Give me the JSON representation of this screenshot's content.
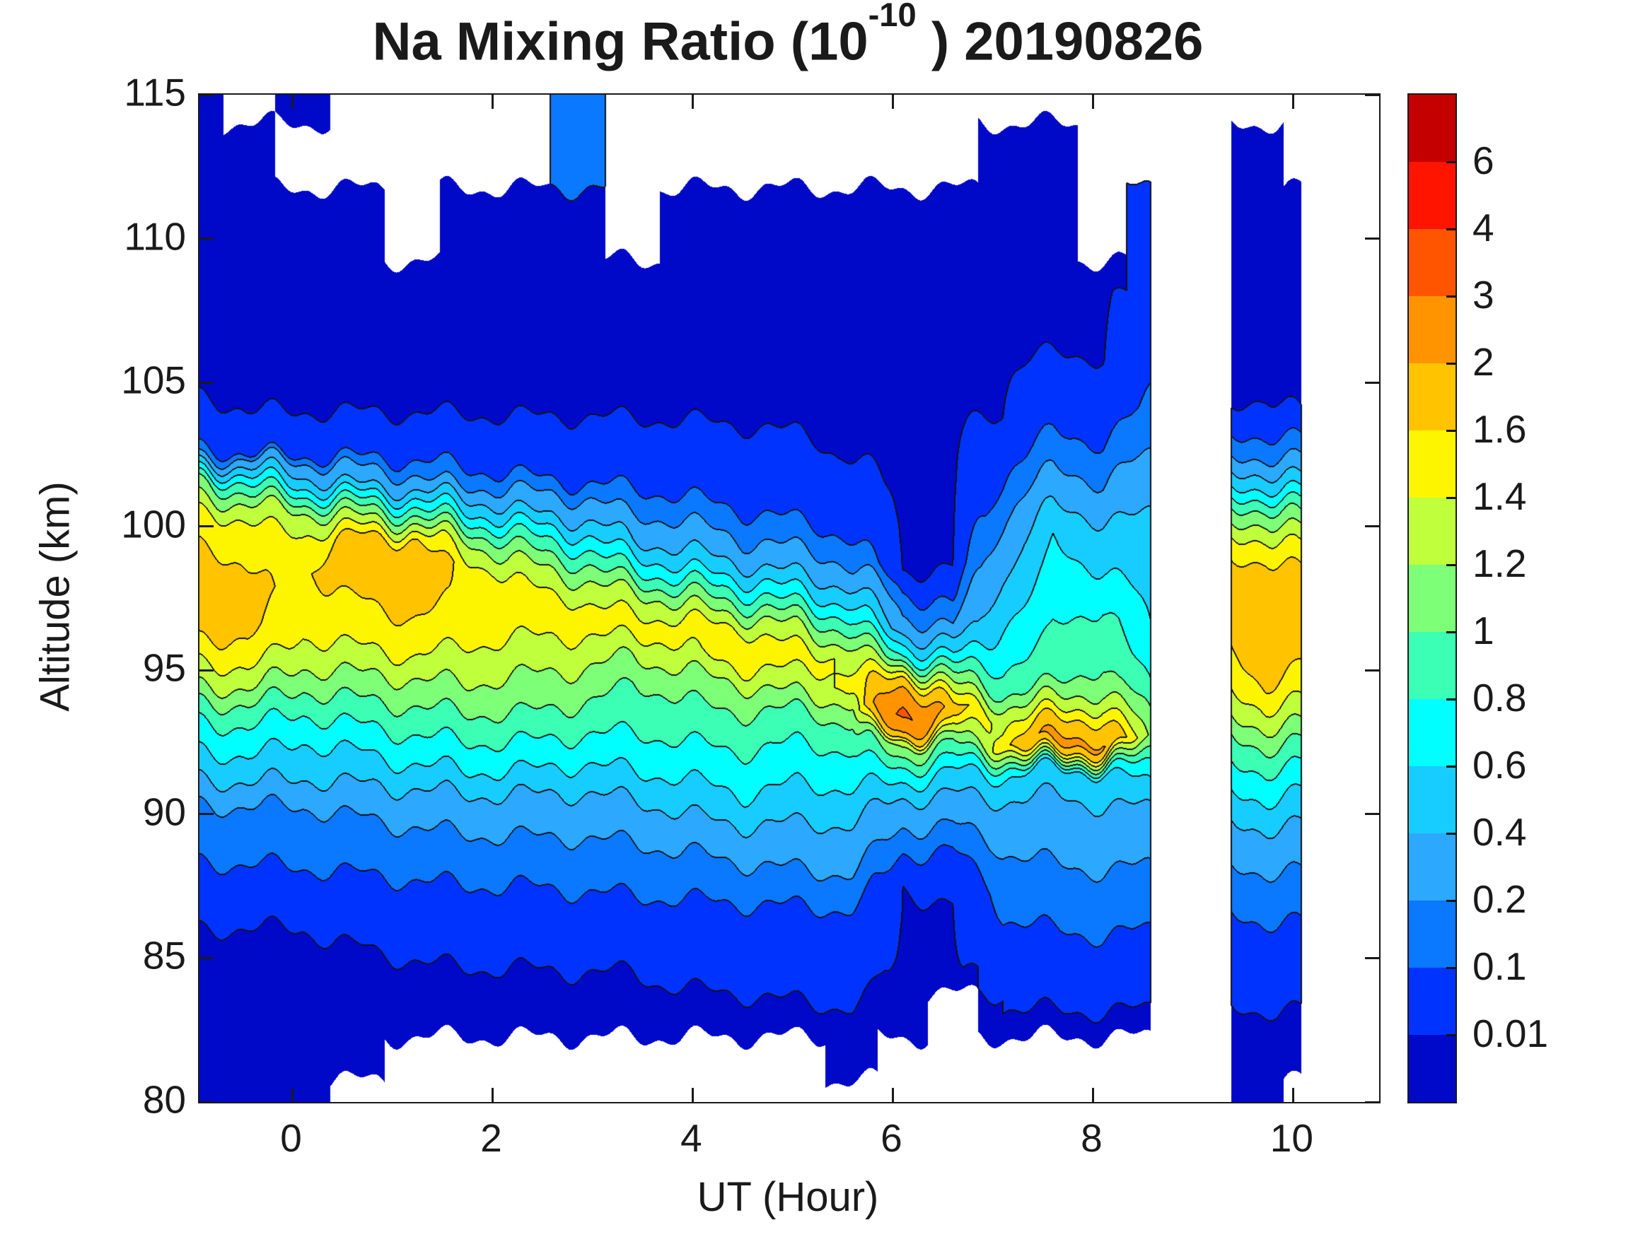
{
  "title": {
    "prefix": "Na Mixing Ratio (10",
    "exp": "-10",
    "suffix": " ) 20190826"
  },
  "axes": {
    "xlabel": "UT (Hour)",
    "ylabel": "Altitude (km)",
    "x_ticks": [
      0,
      2,
      4,
      6,
      8,
      10
    ],
    "y_ticks": [
      80,
      85,
      90,
      95,
      100,
      105,
      110,
      115
    ],
    "xlim": [
      -0.93,
      10.86
    ],
    "ylim": [
      80,
      115
    ]
  },
  "colorbar": {
    "tick_labels": [
      "6",
      "4",
      "3",
      "2",
      "1.6",
      "1.4",
      "1.2",
      "1",
      "0.8",
      "0.6",
      "0.4",
      "0.2",
      "0.1",
      "0.01"
    ],
    "levels": [
      0.01,
      0.1,
      0.2,
      0.4,
      0.6,
      0.8,
      1,
      1.2,
      1.4,
      1.6,
      2,
      3,
      4,
      6
    ],
    "band_colors": [
      "#0009C8",
      "#0033FE",
      "#0A78FF",
      "#2CA8FF",
      "#17CDFF",
      "#00FFFF",
      "#3AFFB5",
      "#7DFF77",
      "#BFFF3C",
      "#FDF500",
      "#FFC300",
      "#FF9400",
      "#FF5500",
      "#FF1400",
      "#C40000"
    ],
    "line_color": "#121212",
    "nodata_color": "#FFFFFF"
  },
  "chart_data": {
    "type": "heatmap",
    "subtype": "filled-contour",
    "x_unit": "UT hour",
    "y_unit": "altitude km",
    "alts": [
      80,
      81.5,
      83,
      84.5,
      86,
      87.5,
      89,
      90.25,
      91.5,
      92.5,
      93.5,
      94.5,
      95.5,
      96.5,
      97.5,
      98.5,
      99.5,
      100.5,
      101.5,
      102.5,
      104,
      106,
      108,
      110.5,
      113,
      115
    ],
    "strips": [
      {
        "name": "main-pass",
        "columns": [
          {
            "x": -0.93,
            "v": [
              0.004,
              0.0045,
              0.005,
              0.006,
              0.009,
              0.06,
              0.13,
              0.18,
              0.45,
              0.65,
              0.85,
              1.2,
              1.45,
              1.7,
              1.85,
              1.75,
              1.58,
              1.42,
              1.05,
              0.12,
              0.012,
              0.005,
              0.004,
              0.004,
              0.003,
              0.003
            ]
          },
          {
            "x": -0.45,
            "v": [
              0.004,
              0.0045,
              0.005,
              0.006,
              0.009,
              0.06,
              0.14,
              0.2,
              0.5,
              0.7,
              0.9,
              1.25,
              1.5,
              1.65,
              1.7,
              1.6,
              1.5,
              1.35,
              0.8,
              0.1,
              0.01,
              0.005,
              0.004,
              0.004,
              0.003,
              null
            ]
          },
          {
            "x": 0.1,
            "v": [
              0.004,
              0.0045,
              0.005,
              0.007,
              0.01,
              0.07,
              0.14,
              0.2,
              0.45,
              0.6,
              0.8,
              1.05,
              1.3,
              1.45,
              1.5,
              1.55,
              1.45,
              1.2,
              0.5,
              0.08,
              0.01,
              0.005,
              0.004,
              0.004,
              null,
              0.003
            ]
          },
          {
            "x": 0.65,
            "v": [
              null,
              0.005,
              0.005,
              0.007,
              0.012,
              0.08,
              0.15,
              0.22,
              0.5,
              0.65,
              0.9,
              1.1,
              1.35,
              1.5,
              1.6,
              1.85,
              1.7,
              1.1,
              0.35,
              0.07,
              0.009,
              0.004,
              0.004,
              0.003,
              null,
              null
            ]
          },
          {
            "x": 1.2,
            "v": [
              null,
              null,
              0.006,
              0.008,
              0.015,
              0.09,
              0.16,
              0.25,
              0.55,
              0.75,
              0.95,
              1.15,
              1.4,
              1.55,
              1.7,
              1.9,
              1.65,
              0.9,
              0.25,
              0.06,
              0.008,
              0.004,
              0.003,
              null,
              null,
              null
            ]
          },
          {
            "x": 1.75,
            "v": [
              null,
              null,
              0.006,
              0.009,
              0.02,
              0.1,
              0.17,
              0.3,
              0.6,
              0.8,
              1.0,
              1.2,
              1.35,
              1.5,
              1.55,
              1.5,
              1.2,
              0.6,
              0.15,
              0.05,
              0.007,
              0.004,
              0.003,
              0.003,
              null,
              null
            ]
          },
          {
            "x": 2.3,
            "v": [
              null,
              null,
              0.006,
              0.009,
              0.02,
              0.1,
              0.18,
              0.3,
              0.6,
              0.8,
              1.0,
              1.15,
              1.3,
              1.45,
              1.5,
              1.3,
              0.9,
              0.4,
              0.12,
              0.04,
              0.006,
              0.004,
              0.003,
              0.003,
              null,
              null
            ]
          },
          {
            "x": 2.85,
            "v": [
              null,
              null,
              0.007,
              0.01,
              0.025,
              0.11,
              0.18,
              0.3,
              0.55,
              0.75,
              0.95,
              1.1,
              1.3,
              1.45,
              1.4,
              1.1,
              0.7,
              0.3,
              0.1,
              0.04,
              0.006,
              0.004,
              0.003,
              0.004,
              0.12,
              0.15
            ]
          },
          {
            "x": 3.4,
            "v": [
              null,
              null,
              0.007,
              0.01,
              0.03,
              0.12,
              0.2,
              0.35,
              0.6,
              0.75,
              0.9,
              1.0,
              1.2,
              1.5,
              1.3,
              0.8,
              0.4,
              0.18,
              0.08,
              0.03,
              0.006,
              0.004,
              0.003,
              null,
              null,
              null
            ]
          },
          {
            "x": 3.95,
            "v": [
              null,
              null,
              0.007,
              0.012,
              0.035,
              0.13,
              0.22,
              0.45,
              0.65,
              0.8,
              0.95,
              1.05,
              1.35,
              1.5,
              1.1,
              0.6,
              0.3,
              0.14,
              0.06,
              0.025,
              0.006,
              0.004,
              0.003,
              0.003,
              null,
              null
            ]
          },
          {
            "x": 4.5,
            "v": [
              null,
              null,
              0.008,
              0.012,
              0.04,
              0.14,
              0.25,
              0.55,
              0.7,
              0.85,
              1.0,
              1.2,
              1.55,
              1.4,
              0.9,
              0.45,
              0.2,
              0.1,
              0.05,
              0.02,
              0.005,
              0.004,
              0.003,
              0.003,
              null,
              null
            ]
          },
          {
            "x": 5.05,
            "v": [
              null,
              null,
              0.008,
              0.014,
              0.045,
              0.15,
              0.28,
              0.5,
              0.65,
              0.8,
              0.95,
              1.3,
              1.5,
              1.2,
              0.7,
              0.35,
              0.15,
              0.08,
              0.04,
              0.015,
              0.005,
              0.003,
              0.003,
              0.003,
              null,
              null
            ]
          },
          {
            "x": 5.6,
            "v": [
              null,
              0.005,
              0.009,
              0.015,
              0.05,
              0.16,
              0.3,
              0.5,
              0.7,
              0.85,
              1.1,
              1.45,
              1.35,
              0.9,
              0.5,
              0.2,
              0.1,
              0.05,
              0.02,
              0.008,
              0.004,
              0.003,
              0.003,
              0.003,
              null,
              null
            ]
          },
          {
            "x": 6.1,
            "v": [
              null,
              null,
              0.005,
              0.007,
              0.008,
              0.01,
              0.13,
              0.3,
              0.75,
              1.3,
              3.3,
              1.9,
              0.8,
              0.25,
              0.12,
              0.008,
              0.005,
              0.004,
              0.004,
              0.004,
              0.003,
              0.003,
              0.003,
              0.003,
              null,
              null
            ]
          },
          {
            "x": 6.6,
            "v": [
              null,
              null,
              null,
              0.005,
              0.008,
              0.012,
              0.12,
              0.28,
              0.6,
              1.0,
              1.75,
              1.2,
              0.6,
              0.2,
              0.07,
              0.01,
              0.006,
              0.005,
              0.004,
              0.004,
              0.003,
              0.003,
              0.003,
              0.003,
              null,
              null
            ]
          },
          {
            "x": 7.1,
            "v": [
              null,
              null,
              0.005,
              0.03,
              0.09,
              0.13,
              0.22,
              0.35,
              0.65,
              1.5,
              1.3,
              0.85,
              0.75,
              0.6,
              0.5,
              0.35,
              0.25,
              0.15,
              0.1,
              0.06,
              0.01,
              0.005,
              0.004,
              0.003,
              0.003,
              null
            ]
          },
          {
            "x": 7.6,
            "v": [
              null,
              null,
              0.006,
              0.04,
              0.1,
              0.14,
              0.25,
              0.32,
              0.55,
              2.2,
              1.45,
              1.0,
              0.85,
              0.8,
              0.7,
              0.65,
              0.6,
              0.45,
              0.25,
              0.15,
              0.05,
              0.01,
              0.005,
              0.004,
              0.003,
              null
            ]
          },
          {
            "x": 8.1,
            "v": [
              null,
              null,
              0.006,
              0.05,
              0.11,
              0.16,
              0.28,
              0.4,
              0.6,
              2.05,
              1.5,
              1.1,
              0.95,
              0.9,
              0.75,
              0.6,
              0.5,
              0.35,
              0.2,
              0.12,
              0.04,
              0.008,
              0.005,
              null,
              null,
              null
            ]
          },
          {
            "x": 8.58,
            "v": [
              null,
              null,
              0.005,
              0.04,
              0.1,
              0.15,
              0.25,
              0.4,
              0.7,
              1.15,
              1.0,
              0.8,
              0.7,
              0.6,
              0.55,
              0.5,
              0.45,
              0.4,
              0.3,
              0.2,
              0.12,
              0.07,
              0.03,
              0.01,
              null,
              null
            ]
          }
        ]
      },
      {
        "name": "late-pass",
        "columns": [
          {
            "x": 9.38,
            "v": [
              0.004,
              0.005,
              0.006,
              0.03,
              0.08,
              0.14,
              0.28,
              0.5,
              0.75,
              0.95,
              1.25,
              1.45,
              1.55,
              1.75,
              1.8,
              1.65,
              1.4,
              1.0,
              0.5,
              0.15,
              0.01,
              0.005,
              0.004,
              0.003,
              0.003,
              null
            ]
          },
          {
            "x": 9.73,
            "v": [
              0.004,
              0.005,
              0.006,
              0.04,
              0.09,
              0.15,
              0.3,
              0.55,
              0.8,
              1.05,
              1.35,
              1.6,
              1.8,
              1.85,
              1.85,
              1.7,
              1.45,
              1.1,
              0.55,
              0.18,
              0.012,
              0.005,
              0.004,
              0.004,
              0.003,
              null
            ]
          },
          {
            "x": 10.08,
            "v": [
              null,
              0.005,
              0.006,
              0.04,
              0.09,
              0.15,
              0.3,
              0.5,
              0.75,
              1.0,
              1.3,
              1.5,
              1.65,
              1.7,
              1.75,
              1.6,
              1.35,
              0.95,
              0.45,
              0.15,
              0.01,
              0.005,
              0.004,
              0.003,
              null,
              null
            ]
          }
        ]
      }
    ]
  }
}
